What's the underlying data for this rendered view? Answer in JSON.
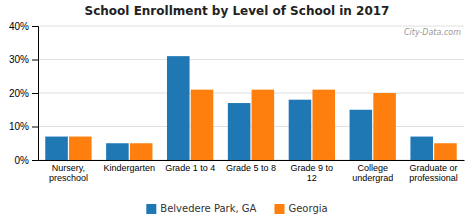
{
  "chart_data": {
    "type": "bar",
    "title": "School Enrollment by Level of School in 2017",
    "categories": [
      "Nursery,\npreschool",
      "Kindergarten",
      "Grade 1 to 4",
      "Grade 5 to 8",
      "Grade 9 to\n12",
      "College\nundergrad",
      "Graduate or\nprofessional"
    ],
    "series": [
      {
        "name": "Belvedere Park, GA",
        "values": [
          7,
          5,
          31,
          17,
          18,
          15,
          7
        ]
      },
      {
        "name": "Georgia",
        "values": [
          7,
          5,
          21,
          21,
          21,
          20,
          5
        ]
      }
    ],
    "ylim": [
      0,
      40
    ],
    "yticks": [
      {
        "value": 0,
        "label": "0%"
      },
      {
        "value": 10,
        "label": "10%"
      },
      {
        "value": 20,
        "label": "20%"
      },
      {
        "value": 30,
        "label": "30%"
      },
      {
        "value": 40,
        "label": "40%"
      }
    ],
    "grid": true,
    "legend": "bottom",
    "annotations": [
      "City-Data.com"
    ]
  }
}
